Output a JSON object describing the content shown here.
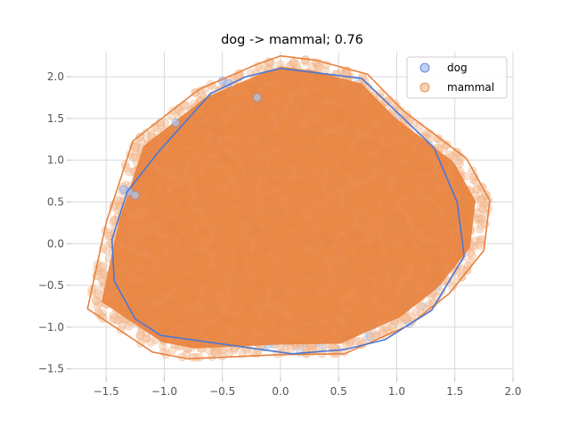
{
  "chart_data": {
    "type": "scatter",
    "title": "dog -> mammal; 0.76",
    "xlabel": "",
    "ylabel": "",
    "xlim": [
      -1.8,
      2.0
    ],
    "ylim": [
      -1.6,
      2.3
    ],
    "grid": true,
    "xticks": [
      -1.5,
      -1.0,
      -0.5,
      0.0,
      0.5,
      1.0,
      1.5,
      2.0
    ],
    "xtick_labels": [
      "−1.5",
      "−1.0",
      "−0.5",
      "0.0",
      "0.5",
      "1.0",
      "1.5",
      "2.0"
    ],
    "yticks": [
      -1.5,
      -1.0,
      -0.5,
      0.0,
      0.5,
      1.0,
      1.5,
      2.0
    ],
    "ytick_labels": [
      "−1.5",
      "−1.0",
      "−0.5",
      "0.0",
      "0.5",
      "1.0",
      "1.5",
      "2.0"
    ],
    "legend_position": "top-right",
    "series": [
      {
        "name": "dog",
        "color": "#4a78d6",
        "point_fill": "#aec4ee",
        "hull": [
          [
            0.0,
            2.1
          ],
          [
            0.7,
            1.98
          ],
          [
            1.32,
            1.15
          ],
          [
            1.52,
            0.5
          ],
          [
            1.58,
            -0.15
          ],
          [
            1.3,
            -0.8
          ],
          [
            0.9,
            -1.15
          ],
          [
            0.55,
            -1.27
          ],
          [
            0.1,
            -1.32
          ],
          [
            -1.03,
            -1.1
          ],
          [
            -1.25,
            -0.9
          ],
          [
            -1.43,
            -0.45
          ],
          [
            -1.45,
            0.05
          ],
          [
            -1.32,
            0.62
          ],
          [
            -1.05,
            1.1
          ],
          [
            -0.6,
            1.8
          ],
          [
            -0.3,
            2.0
          ]
        ]
      },
      {
        "name": "mammal",
        "color": "#e8823e",
        "point_fill": "#f6c4a0",
        "hull": [
          [
            0.0,
            2.25
          ],
          [
            0.3,
            2.2
          ],
          [
            0.75,
            2.03
          ],
          [
            1.05,
            1.6
          ],
          [
            1.6,
            1.02
          ],
          [
            1.8,
            0.52
          ],
          [
            1.75,
            -0.08
          ],
          [
            1.45,
            -0.6
          ],
          [
            1.1,
            -0.98
          ],
          [
            0.55,
            -1.32
          ],
          [
            0.0,
            -1.33
          ],
          [
            -0.8,
            -1.38
          ],
          [
            -1.1,
            -1.3
          ],
          [
            -1.66,
            -0.78
          ],
          [
            -1.5,
            0.25
          ],
          [
            -1.27,
            1.23
          ],
          [
            -0.7,
            1.85
          ],
          [
            -0.2,
            2.15
          ]
        ]
      }
    ]
  }
}
